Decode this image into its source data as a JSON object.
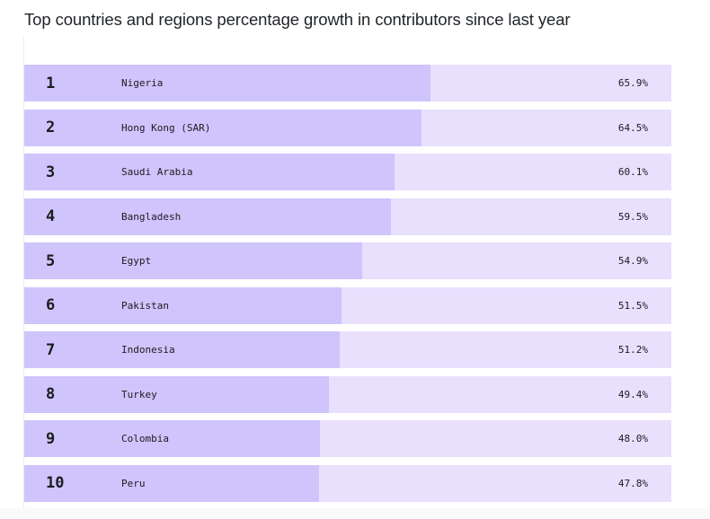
{
  "title": "Top countries and regions percentage growth in contributors since last year",
  "chart_data": {
    "type": "bar",
    "orientation": "horizontal",
    "title": "Top countries and regions percentage growth in contributors since last year",
    "ranks": [
      "1",
      "2",
      "3",
      "4",
      "5",
      "6",
      "7",
      "8",
      "9",
      "10"
    ],
    "categories": [
      "Nigeria",
      "Hong Kong (SAR)",
      "Saudi Arabia",
      "Bangladesh",
      "Egypt",
      "Pakistan",
      "Indonesia",
      "Turkey",
      "Colombia",
      "Peru"
    ],
    "values": [
      65.9,
      64.5,
      60.1,
      59.5,
      54.9,
      51.5,
      51.2,
      49.4,
      48.0,
      47.8
    ],
    "value_labels": [
      "65.9%",
      "64.5%",
      "60.1%",
      "59.5%",
      "54.9%",
      "51.5%",
      "51.2%",
      "49.4%",
      "48.0%",
      "47.8%"
    ],
    "unit": "%",
    "grid": false,
    "colors": {
      "bar": "#d0c4fc",
      "track": "#e8e0fd",
      "text": "#1b1b1f"
    }
  }
}
